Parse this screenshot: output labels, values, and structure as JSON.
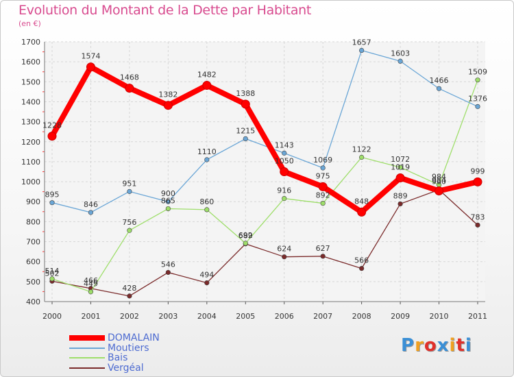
{
  "title": "Evolution du Montant de la Dette par Habitant",
  "subtitle": "(en €)",
  "logo": {
    "text": "Proxiti",
    "letter_colors": [
      "#3a8fd6",
      "#f0a020",
      "#e0302a",
      "#3a8fd6",
      "#f0a020",
      "#e0302a",
      "#3a8fd6"
    ]
  },
  "chart_data": {
    "type": "line",
    "title": "Evolution du Montant de la Dette par Habitant",
    "subtitle": "(en €)",
    "xlabel": "",
    "ylabel": "",
    "x": [
      "2000",
      "2001",
      "2002",
      "2003",
      "2004",
      "2005",
      "2006",
      "2007",
      "2008",
      "2009",
      "2010",
      "2011"
    ],
    "ylim": [
      400,
      1700
    ],
    "yticks": [
      "400",
      "500",
      "600",
      "700",
      "800",
      "900",
      "1000",
      "1100",
      "1200",
      "1300",
      "1400",
      "1500",
      "1600",
      "1700"
    ],
    "grid": true,
    "legend_position": "bottom-left",
    "series": [
      {
        "name": "DOMALAIN",
        "color": "#ff0000",
        "values": [
          1228,
          1574,
          1468,
          1382,
          1482,
          1388,
          1050,
          975,
          848,
          1019,
          954,
          999
        ],
        "labels": [
          "1228",
          "1574",
          "1468",
          "1382",
          "1482",
          "1388",
          "1050",
          "975",
          "848",
          "1019",
          "954",
          "999"
        ]
      },
      {
        "name": "Moutiers",
        "color": "#6aa6d6",
        "values": [
          895,
          846,
          951,
          900,
          1110,
          1215,
          1143,
          1069,
          1657,
          1603,
          1466,
          1376
        ],
        "labels": [
          "895",
          "846",
          "951",
          "900",
          "1110",
          "1215",
          "1143",
          "1069",
          "1657",
          "1603",
          "1466",
          "1376"
        ]
      },
      {
        "name": "Bais",
        "color": "#9ede6a",
        "values": [
          514,
          449,
          756,
          865,
          860,
          692,
          916,
          892,
          1122,
          1072,
          984,
          1509
        ],
        "labels": [
          "514",
          "449",
          "756",
          "865",
          "860",
          "692",
          "916",
          "892",
          "1122",
          "1072",
          "984",
          "1509"
        ]
      },
      {
        "name": "Vergéal",
        "color": "#7a2a2a",
        "values": [
          502,
          466,
          428,
          546,
          494,
          689,
          624,
          627,
          566,
          889,
          960,
          783
        ],
        "labels": [
          "502",
          "466",
          "428",
          "546",
          "494",
          "689",
          "624",
          "627",
          "566",
          "889",
          "960",
          "783"
        ]
      }
    ]
  }
}
